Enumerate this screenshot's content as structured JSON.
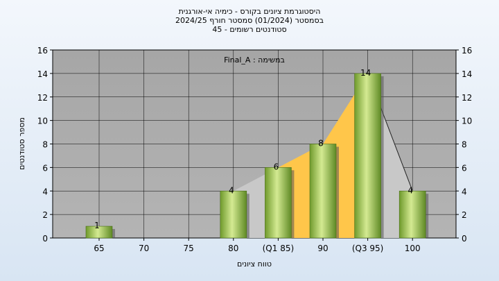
{
  "title_lines": [
    "היסטוגרמת ציונים בקורס - כימיה אי-אורגנית",
    "בסמסטר  (01/2024)  סמסטר חורף 2024/25",
    "סטודנטים רשומים - 45"
  ],
  "chart_data": {
    "type": "bar",
    "annotation": "Final_A : במשימה",
    "xlabel": "טווח ציונים",
    "ylabel": "מספר סטודנטים",
    "categories": [
      "65",
      "70",
      "75",
      "80",
      "(Q1 85)",
      "90",
      "(Q3 95)",
      "100"
    ],
    "values": [
      1,
      0,
      0,
      4,
      6,
      8,
      14,
      4
    ],
    "value_labels": [
      "1",
      "",
      "",
      "4",
      "6",
      "8",
      "14",
      "4"
    ],
    "ylim": [
      0,
      16
    ],
    "yticks": [
      0,
      2,
      4,
      6,
      8,
      10,
      12,
      14,
      16
    ],
    "secondary_y_axis": true,
    "grid": true,
    "quartile_band": {
      "from_category": "(Q1 85)",
      "to_category": "(Q3 95)"
    },
    "colors": {
      "plot_background": "#aaaaaa",
      "bar_light": "#d8ec98",
      "bar_mid": "#9cc052",
      "bar_dark": "#5f8a25",
      "quartile_fill": "#ffc64a",
      "area_fill": "#c8c8c8"
    }
  }
}
